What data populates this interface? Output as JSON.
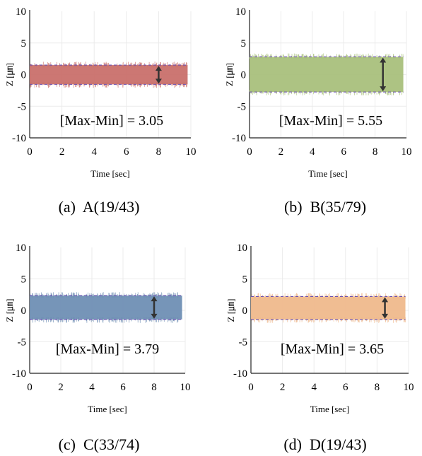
{
  "figure": {
    "panels": [
      {
        "caption": "(a)  A(19/43)",
        "annotation": "[Max-Min] = 3.05",
        "color": "#c9706c"
      },
      {
        "caption": "(b)  B(35/79)",
        "annotation": "[Max-Min] = 5.55",
        "color": "#a9c07c"
      },
      {
        "caption": "(c)  C(33/74)",
        "annotation": "[Max-Min] = 3.79",
        "color": "#6f8fb4"
      },
      {
        "caption": "(d)  D(19/43)",
        "annotation": "[Max-Min] = 3.65",
        "color": "#efb98c"
      }
    ]
  },
  "chart_data": [
    {
      "type": "area",
      "xlabel": "Time [sec]",
      "ylabel": "Z [㎛]",
      "xlim": [
        0,
        10
      ],
      "ylim": [
        -10,
        10
      ],
      "xticks": [
        "0",
        "2",
        "4",
        "6",
        "8",
        "10"
      ],
      "yticks": [
        "10",
        "5",
        "0",
        "-5",
        "-10"
      ],
      "x": [
        0,
        9.8
      ],
      "band_upper": 1.5,
      "band_lower": -1.55,
      "range_arrow_x": 8.0,
      "annotation": "[Max-Min] = 3.05",
      "grid": true
    },
    {
      "type": "area",
      "xlabel": "Time [sec]",
      "ylabel": "Z [㎛]",
      "xlim": [
        0,
        10
      ],
      "ylim": [
        -10,
        10
      ],
      "xticks": [
        "0",
        "2",
        "4",
        "6",
        "8",
        "10"
      ],
      "yticks": [
        "10",
        "5",
        "0",
        "-5",
        "-10"
      ],
      "x": [
        0,
        9.8
      ],
      "band_upper": 2.8,
      "band_lower": -2.75,
      "range_arrow_x": 8.5,
      "annotation": "[Max-Min] = 5.55",
      "grid": true
    },
    {
      "type": "area",
      "xlabel": "Time [sec]",
      "ylabel": "Z [㎛]",
      "xlim": [
        0,
        10
      ],
      "ylim": [
        -10,
        10
      ],
      "xticks": [
        "0",
        "2",
        "4",
        "6",
        "8",
        "10"
      ],
      "yticks": [
        "10",
        "5",
        "0",
        "-5",
        "-10"
      ],
      "x": [
        0,
        9.8
      ],
      "band_upper": 2.35,
      "band_lower": -1.44,
      "range_arrow_x": 8.0,
      "annotation": "[Max-Min] = 3.79",
      "grid": true
    },
    {
      "type": "area",
      "xlabel": "Time [sec]",
      "ylabel": "Z [㎛]",
      "xlim": [
        0,
        10
      ],
      "ylim": [
        -10,
        10
      ],
      "xticks": [
        "0",
        "2",
        "4",
        "6",
        "8",
        "10"
      ],
      "yticks": [
        "10",
        "5",
        "0",
        "-5",
        "-10"
      ],
      "x": [
        0,
        9.8
      ],
      "band_upper": 2.2,
      "band_lower": -1.45,
      "range_arrow_x": 8.5,
      "annotation": "[Max-Min] = 3.65",
      "grid": true
    }
  ]
}
